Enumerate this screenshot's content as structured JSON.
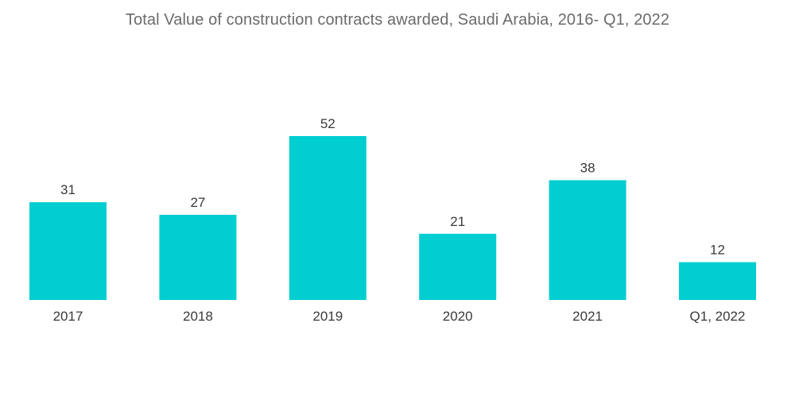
{
  "chart_data": {
    "type": "bar",
    "title": "Total Value of construction contracts awarded, Saudi Arabia, 2016- Q1, 2022",
    "categories": [
      "2017",
      "2018",
      "2019",
      "2020",
      "2021",
      "Q1, 2022"
    ],
    "values": [
      31,
      27,
      52,
      21,
      38,
      12
    ],
    "xlabel": "",
    "ylabel": "",
    "ylim": [
      0,
      52
    ],
    "grid": false,
    "legend": "none",
    "bar_color": "#00CED1"
  }
}
